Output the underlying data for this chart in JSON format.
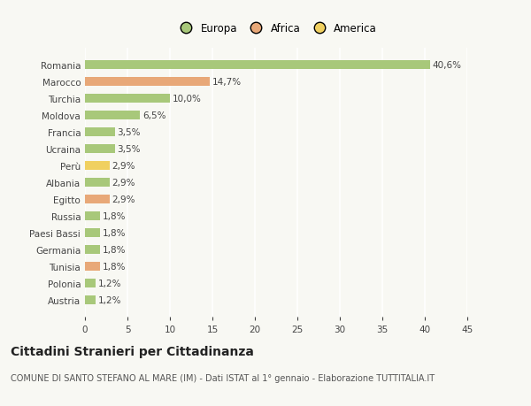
{
  "categories": [
    "Romania",
    "Marocco",
    "Turchia",
    "Moldova",
    "Francia",
    "Ucraina",
    "Perù",
    "Albania",
    "Egitto",
    "Russia",
    "Paesi Bassi",
    "Germania",
    "Tunisia",
    "Polonia",
    "Austria"
  ],
  "values": [
    40.6,
    14.7,
    10.0,
    6.5,
    3.5,
    3.5,
    2.9,
    2.9,
    2.9,
    1.8,
    1.8,
    1.8,
    1.8,
    1.2,
    1.2
  ],
  "labels": [
    "40,6%",
    "14,7%",
    "10,0%",
    "6,5%",
    "3,5%",
    "3,5%",
    "2,9%",
    "2,9%",
    "2,9%",
    "1,8%",
    "1,8%",
    "1,8%",
    "1,8%",
    "1,2%",
    "1,2%"
  ],
  "colors": [
    "#a8c87a",
    "#e8a878",
    "#a8c87a",
    "#a8c87a",
    "#a8c87a",
    "#a8c87a",
    "#f0d060",
    "#a8c87a",
    "#e8a878",
    "#a8c87a",
    "#a8c87a",
    "#a8c87a",
    "#e8a878",
    "#a8c87a",
    "#a8c87a"
  ],
  "legend_labels": [
    "Europa",
    "Africa",
    "America"
  ],
  "legend_colors": [
    "#a8c87a",
    "#e8a878",
    "#f0d060"
  ],
  "xlim": [
    0,
    45
  ],
  "xticks": [
    0,
    5,
    10,
    15,
    20,
    25,
    30,
    35,
    40,
    45
  ],
  "title": "Cittadini Stranieri per Cittadinanza",
  "subtitle": "COMUNE DI SANTO STEFANO AL MARE (IM) - Dati ISTAT al 1° gennaio - Elaborazione TUTTITALIA.IT",
  "background_color": "#f8f8f3",
  "plot_background": "#f8f8f3",
  "bar_height": 0.55,
  "title_fontsize": 10,
  "subtitle_fontsize": 7,
  "label_fontsize": 7.5,
  "tick_fontsize": 7.5,
  "legend_fontsize": 8.5
}
